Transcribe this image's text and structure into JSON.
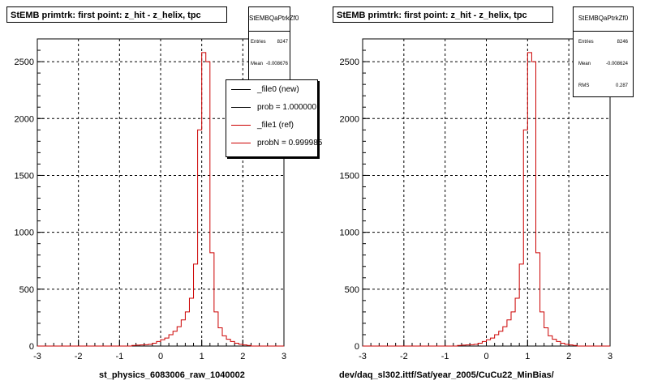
{
  "chart_data": [
    {
      "type": "step",
      "title": "StEMB primtrk: first point: z_hit - z_helix, tpc",
      "xlabel": "st_physics_6083006_raw_1040002",
      "ylabel": "",
      "xlim": [
        -3,
        3
      ],
      "ylim": [
        0,
        2700
      ],
      "x_ticks": [
        -3,
        -2,
        -1,
        0,
        1,
        2,
        3
      ],
      "y_ticks": [
        0,
        500,
        1000,
        1500,
        2000,
        2500
      ],
      "grid": true,
      "stats": {
        "name": "StEMBQaPtrkZf0",
        "rows": [
          {
            "label": "Entries",
            "value": "8247"
          },
          {
            "label": "Mean",
            "value": "-0.008676"
          }
        ]
      },
      "legend": {
        "placement": "top-right",
        "entries": [
          {
            "label": "_file0 (new)",
            "color": "#000000"
          },
          {
            "label": "prob = 1.000000",
            "color": "#000000"
          },
          {
            "label": "_file1 (ref)",
            "color": "#cc0000"
          },
          {
            "label": "probN = 0.999985",
            "color": "#cc0000"
          }
        ]
      },
      "bin_edges_start": -3,
      "bin_width": 0.1,
      "series": [
        {
          "name": "_file1 (ref)",
          "color": "#cc0000",
          "values": [
            0,
            0,
            0,
            0,
            0,
            0,
            0,
            0,
            0,
            0,
            0,
            0,
            0,
            0,
            0,
            0,
            0,
            0,
            0,
            0,
            0,
            0,
            0,
            5,
            8,
            10,
            12,
            15,
            25,
            40,
            55,
            70,
            100,
            130,
            170,
            230,
            300,
            420,
            720,
            1900,
            2580,
            2500,
            820,
            300,
            160,
            90,
            60,
            40,
            25,
            15,
            10,
            5,
            0,
            0,
            0,
            0,
            0,
            0,
            0,
            0
          ]
        }
      ]
    },
    {
      "type": "step",
      "title": "StEMB primtrk: first point: z_hit - z_helix, tpc",
      "xlabel": "dev/daq_sl302.ittf/Sat/year_2005/CuCu22_MinBias/",
      "ylabel": "",
      "xlim": [
        -3,
        3
      ],
      "ylim": [
        0,
        2700
      ],
      "x_ticks": [
        -3,
        -2,
        -1,
        0,
        1,
        2,
        3
      ],
      "y_ticks": [
        0,
        500,
        1000,
        1500,
        2000,
        2500
      ],
      "grid": true,
      "stats": {
        "name": "StEMBQaPtrkZf0",
        "rows": [
          {
            "label": "Entries",
            "value": "8246"
          },
          {
            "label": "Mean",
            "value": "-0.008624"
          },
          {
            "label": "RMS",
            "value": "0.287"
          }
        ]
      },
      "bin_edges_start": -3,
      "bin_width": 0.1,
      "series": [
        {
          "name": "",
          "color": "#cc0000",
          "values": [
            0,
            0,
            0,
            0,
            0,
            0,
            0,
            0,
            0,
            0,
            0,
            0,
            0,
            0,
            0,
            0,
            0,
            0,
            0,
            0,
            0,
            0,
            0,
            5,
            8,
            10,
            12,
            15,
            25,
            40,
            55,
            70,
            100,
            130,
            170,
            230,
            300,
            420,
            720,
            1900,
            2580,
            2500,
            820,
            300,
            160,
            90,
            60,
            40,
            25,
            15,
            10,
            5,
            0,
            0,
            0,
            0,
            0,
            0,
            0,
            0
          ]
        }
      ]
    }
  ]
}
